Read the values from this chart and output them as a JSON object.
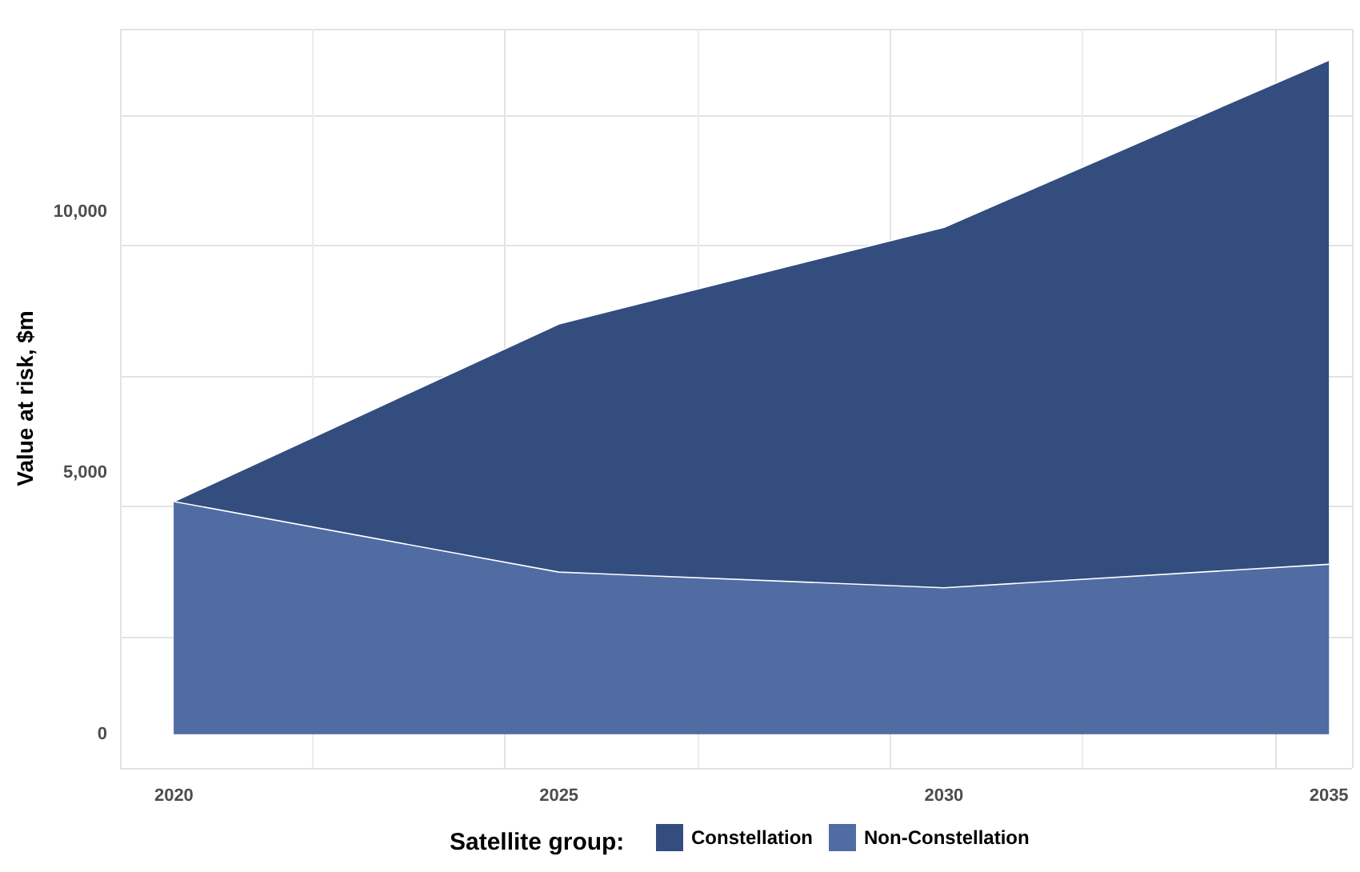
{
  "chart_data": {
    "type": "area",
    "stacked": true,
    "ylabel": "Value at risk, $m",
    "legend_title": "Satellite group:",
    "legend": "bottom",
    "grid": true,
    "x": [
      2020,
      2025,
      2030,
      2035
    ],
    "xlim": [
      2019.3,
      2035.3
    ],
    "xticks": [
      2020,
      2025,
      2030,
      2035
    ],
    "ylim": [
      -650,
      13500
    ],
    "yticks": [
      {
        "value": 0,
        "label": "0"
      },
      {
        "value": 5000,
        "label": "5,000"
      },
      {
        "value": 10000,
        "label": "10,000"
      }
    ],
    "series": [
      {
        "name": "Non-Constellation",
        "color": "#506ca3",
        "values": [
          4450,
          3100,
          2800,
          3250
        ]
      },
      {
        "name": "Constellation",
        "color": "#334d7f",
        "values": [
          0,
          4750,
          6900,
          9650
        ]
      }
    ]
  }
}
